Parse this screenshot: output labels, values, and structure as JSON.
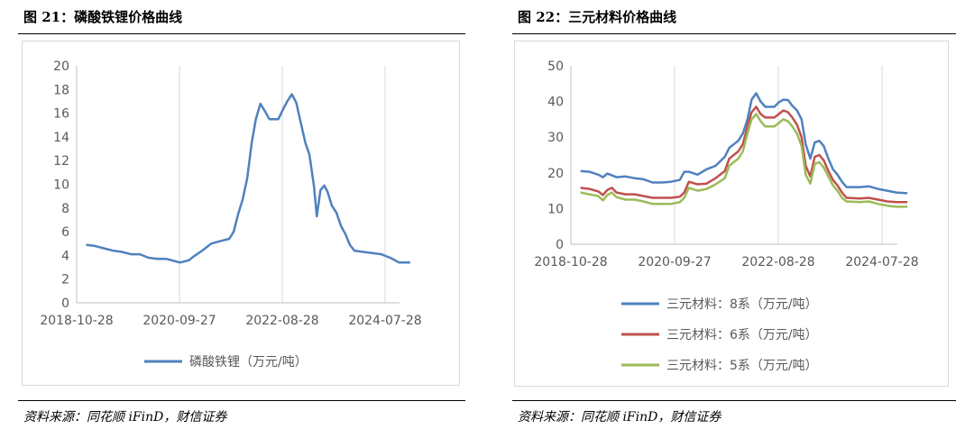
{
  "panels": {
    "left": {
      "title": "图 21：磷酸铁锂价格曲线",
      "source": "资料来源：同花顺 iFinD，财信证券"
    },
    "right": {
      "title": "图 22：三元材料价格曲线",
      "source": "资料来源：同花顺 iFinD，财信证券"
    }
  },
  "chart_data": [
    {
      "type": "line",
      "title": "",
      "xlabel": "",
      "ylabel": "",
      "x_ticks": [
        "2018-10-28",
        "2020-09-27",
        "2022-08-28",
        "2024-07-28"
      ],
      "y_ticks": [
        "0",
        "2",
        "4",
        "6",
        "8",
        "10",
        "12",
        "14",
        "16",
        "18",
        "20"
      ],
      "ylim": [
        0,
        20
      ],
      "grid": "vertical",
      "legend": "bottom",
      "series": [
        {
          "name": "磷酸铁锂（万元/吨）",
          "color": "#4f81bd",
          "points": [
            [
              "2019-01-01",
              4.9
            ],
            [
              "2019-03-01",
              4.8
            ],
            [
              "2019-05-01",
              4.6
            ],
            [
              "2019-07-01",
              4.4
            ],
            [
              "2019-09-01",
              4.3
            ],
            [
              "2019-11-01",
              4.1
            ],
            [
              "2020-01-01",
              4.1
            ],
            [
              "2020-03-01",
              3.8
            ],
            [
              "2020-05-01",
              3.7
            ],
            [
              "2020-07-01",
              3.7
            ],
            [
              "2020-09-01",
              3.5
            ],
            [
              "2020-10-01",
              3.4
            ],
            [
              "2020-12-01",
              3.6
            ],
            [
              "2021-01-01",
              3.9
            ],
            [
              "2021-03-01",
              4.4
            ],
            [
              "2021-05-01",
              5.0
            ],
            [
              "2021-07-01",
              5.2
            ],
            [
              "2021-09-01",
              5.4
            ],
            [
              "2021-10-01",
              6.0
            ],
            [
              "2021-11-01",
              7.5
            ],
            [
              "2021-12-01",
              8.7
            ],
            [
              "2022-01-01",
              10.5
            ],
            [
              "2022-02-01",
              13.5
            ],
            [
              "2022-03-01",
              15.5
            ],
            [
              "2022-04-01",
              16.8
            ],
            [
              "2022-05-01",
              16.2
            ],
            [
              "2022-06-01",
              15.5
            ],
            [
              "2022-08-01",
              15.5
            ],
            [
              "2022-09-01",
              16.3
            ],
            [
              "2022-10-01",
              17.0
            ],
            [
              "2022-11-01",
              17.6
            ],
            [
              "2022-12-01",
              16.9
            ],
            [
              "2023-01-01",
              15.2
            ],
            [
              "2023-02-01",
              13.5
            ],
            [
              "2023-03-01",
              12.5
            ],
            [
              "2023-04-01",
              9.8
            ],
            [
              "2023-04-20",
              7.3
            ],
            [
              "2023-05-15",
              9.5
            ],
            [
              "2023-06-10",
              9.9
            ],
            [
              "2023-07-01",
              9.4
            ],
            [
              "2023-08-01",
              8.2
            ],
            [
              "2023-09-01",
              7.6
            ],
            [
              "2023-10-01",
              6.5
            ],
            [
              "2023-11-01",
              5.8
            ],
            [
              "2023-12-01",
              4.9
            ],
            [
              "2024-01-01",
              4.4
            ],
            [
              "2024-03-01",
              4.3
            ],
            [
              "2024-05-01",
              4.2
            ],
            [
              "2024-07-01",
              4.1
            ],
            [
              "2024-09-01",
              3.8
            ],
            [
              "2024-11-01",
              3.4
            ],
            [
              "2025-01-15",
              3.4
            ]
          ]
        }
      ]
    },
    {
      "type": "line",
      "title": "",
      "xlabel": "",
      "ylabel": "",
      "x_ticks": [
        "2018-10-28",
        "2020-09-27",
        "2022-08-28",
        "2024-07-28"
      ],
      "y_ticks": [
        "0",
        "10",
        "20",
        "30",
        "40",
        "50"
      ],
      "ylim": [
        0,
        50
      ],
      "grid": "vertical",
      "legend": "bottom",
      "series": [
        {
          "name": "三元材料：8系（万元/吨）",
          "color": "#4f81bd",
          "points": [
            [
              "2019-01-01",
              20.5
            ],
            [
              "2019-03-01",
              20.3
            ],
            [
              "2019-05-01",
              19.5
            ],
            [
              "2019-06-01",
              18.8
            ],
            [
              "2019-07-01",
              19.8
            ],
            [
              "2019-08-01",
              19.3
            ],
            [
              "2019-09-01",
              18.8
            ],
            [
              "2019-11-01",
              19.0
            ],
            [
              "2020-01-01",
              18.5
            ],
            [
              "2020-03-01",
              18.2
            ],
            [
              "2020-05-01",
              17.3
            ],
            [
              "2020-07-01",
              17.3
            ],
            [
              "2020-09-01",
              17.5
            ],
            [
              "2020-11-01",
              18.0
            ],
            [
              "2020-12-01",
              20.3
            ],
            [
              "2021-01-01",
              20.3
            ],
            [
              "2021-03-01",
              19.5
            ],
            [
              "2021-05-01",
              21.0
            ],
            [
              "2021-07-01",
              22.0
            ],
            [
              "2021-09-01",
              24.5
            ],
            [
              "2021-10-01",
              27.0
            ],
            [
              "2021-12-01",
              29.0
            ],
            [
              "2022-01-01",
              31.0
            ],
            [
              "2022-02-01",
              35.0
            ],
            [
              "2022-03-01",
              40.5
            ],
            [
              "2022-04-01",
              42.3
            ],
            [
              "2022-05-01",
              40.0
            ],
            [
              "2022-06-01",
              38.5
            ],
            [
              "2022-08-01",
              38.5
            ],
            [
              "2022-09-01",
              39.8
            ],
            [
              "2022-10-01",
              40.5
            ],
            [
              "2022-11-01",
              40.4
            ],
            [
              "2022-12-01",
              38.8
            ],
            [
              "2023-01-01",
              37.5
            ],
            [
              "2023-02-01",
              35.0
            ],
            [
              "2023-03-01",
              28.0
            ],
            [
              "2023-04-01",
              24.0
            ],
            [
              "2023-05-01",
              28.5
            ],
            [
              "2023-06-01",
              29.0
            ],
            [
              "2023-07-01",
              27.5
            ],
            [
              "2023-08-01",
              24.0
            ],
            [
              "2023-09-01",
              21.0
            ],
            [
              "2023-10-01",
              19.5
            ],
            [
              "2023-11-01",
              17.5
            ],
            [
              "2023-12-01",
              16.0
            ],
            [
              "2024-03-01",
              16.0
            ],
            [
              "2024-05-01",
              16.2
            ],
            [
              "2024-07-01",
              15.5
            ],
            [
              "2024-09-01",
              15.0
            ],
            [
              "2024-11-01",
              14.5
            ],
            [
              "2025-01-15",
              14.3
            ]
          ]
        },
        {
          "name": "三元材料：6系（万元/吨）",
          "color": "#c0504d",
          "points": [
            [
              "2019-01-01",
              15.8
            ],
            [
              "2019-03-01",
              15.5
            ],
            [
              "2019-05-01",
              14.8
            ],
            [
              "2019-06-01",
              13.8
            ],
            [
              "2019-07-01",
              15.2
            ],
            [
              "2019-08-01",
              15.8
            ],
            [
              "2019-09-01",
              14.5
            ],
            [
              "2019-11-01",
              14.0
            ],
            [
              "2020-01-01",
              14.0
            ],
            [
              "2020-03-01",
              13.5
            ],
            [
              "2020-05-01",
              13.0
            ],
            [
              "2020-09-01",
              13.0
            ],
            [
              "2020-11-01",
              13.3
            ],
            [
              "2020-12-01",
              14.5
            ],
            [
              "2021-01-01",
              17.5
            ],
            [
              "2021-03-01",
              16.8
            ],
            [
              "2021-05-01",
              17.0
            ],
            [
              "2021-07-01",
              18.5
            ],
            [
              "2021-09-01",
              20.5
            ],
            [
              "2021-10-01",
              24.0
            ],
            [
              "2021-12-01",
              26.0
            ],
            [
              "2022-01-01",
              28.0
            ],
            [
              "2022-02-01",
              33.0
            ],
            [
              "2022-03-01",
              37.0
            ],
            [
              "2022-04-01",
              38.5
            ],
            [
              "2022-05-01",
              36.5
            ],
            [
              "2022-06-01",
              35.5
            ],
            [
              "2022-08-01",
              35.5
            ],
            [
              "2022-09-01",
              36.5
            ],
            [
              "2022-10-01",
              37.5
            ],
            [
              "2022-11-01",
              37.0
            ],
            [
              "2022-12-01",
              35.5
            ],
            [
              "2023-01-01",
              33.5
            ],
            [
              "2023-02-01",
              30.0
            ],
            [
              "2023-03-01",
              22.0
            ],
            [
              "2023-04-01",
              19.0
            ],
            [
              "2023-05-01",
              24.5
            ],
            [
              "2023-06-01",
              25.0
            ],
            [
              "2023-07-01",
              23.5
            ],
            [
              "2023-08-01",
              20.5
            ],
            [
              "2023-09-01",
              18.0
            ],
            [
              "2023-10-01",
              16.5
            ],
            [
              "2023-11-01",
              14.5
            ],
            [
              "2023-12-01",
              13.0
            ],
            [
              "2024-03-01",
              12.8
            ],
            [
              "2024-05-01",
              13.0
            ],
            [
              "2024-07-01",
              12.5
            ],
            [
              "2024-09-01",
              12.0
            ],
            [
              "2024-11-01",
              11.8
            ],
            [
              "2025-01-15",
              11.8
            ]
          ]
        },
        {
          "name": "三元材料：5系（万元/吨）",
          "color": "#9bbb59",
          "points": [
            [
              "2019-01-01",
              14.5
            ],
            [
              "2019-03-01",
              14.0
            ],
            [
              "2019-05-01",
              13.5
            ],
            [
              "2019-06-01",
              12.3
            ],
            [
              "2019-07-01",
              13.8
            ],
            [
              "2019-08-01",
              14.5
            ],
            [
              "2019-09-01",
              13.2
            ],
            [
              "2019-11-01",
              12.5
            ],
            [
              "2020-01-01",
              12.5
            ],
            [
              "2020-03-01",
              12.0
            ],
            [
              "2020-05-01",
              11.3
            ],
            [
              "2020-09-01",
              11.3
            ],
            [
              "2020-11-01",
              11.8
            ],
            [
              "2020-12-01",
              13.0
            ],
            [
              "2021-01-01",
              15.8
            ],
            [
              "2021-03-01",
              15.0
            ],
            [
              "2021-05-01",
              15.5
            ],
            [
              "2021-07-01",
              16.8
            ],
            [
              "2021-09-01",
              18.5
            ],
            [
              "2021-10-01",
              22.0
            ],
            [
              "2021-12-01",
              24.0
            ],
            [
              "2022-01-01",
              26.0
            ],
            [
              "2022-02-01",
              31.0
            ],
            [
              "2022-03-01",
              35.0
            ],
            [
              "2022-04-01",
              36.5
            ],
            [
              "2022-05-01",
              34.5
            ],
            [
              "2022-06-01",
              33.0
            ],
            [
              "2022-08-01",
              33.0
            ],
            [
              "2022-09-01",
              34.0
            ],
            [
              "2022-10-01",
              35.0
            ],
            [
              "2022-11-01",
              34.5
            ],
            [
              "2022-12-01",
              33.0
            ],
            [
              "2023-01-01",
              31.0
            ],
            [
              "2023-02-01",
              27.5
            ],
            [
              "2023-03-01",
              19.5
            ],
            [
              "2023-04-01",
              17.0
            ],
            [
              "2023-05-01",
              22.5
            ],
            [
              "2023-06-01",
              23.0
            ],
            [
              "2023-07-01",
              21.5
            ],
            [
              "2023-08-01",
              19.0
            ],
            [
              "2023-09-01",
              16.5
            ],
            [
              "2023-10-01",
              15.0
            ],
            [
              "2023-11-01",
              13.0
            ],
            [
              "2023-12-01",
              12.0
            ],
            [
              "2024-03-01",
              11.8
            ],
            [
              "2024-05-01",
              12.0
            ],
            [
              "2024-07-01",
              11.3
            ],
            [
              "2024-09-01",
              10.8
            ],
            [
              "2024-11-01",
              10.5
            ],
            [
              "2025-01-15",
              10.5
            ]
          ]
        }
      ]
    }
  ]
}
